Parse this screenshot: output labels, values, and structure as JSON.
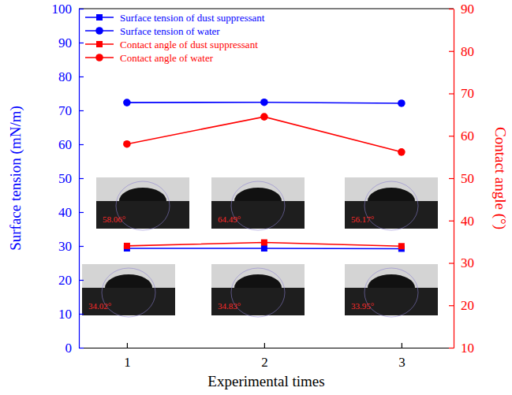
{
  "chart_data": {
    "type": "line",
    "x_label": "Experimental times",
    "y_label": "Surface tension (mN/m)",
    "y2_label": "Contact angle (°)",
    "x": [
      1,
      2,
      3
    ],
    "xlim": [
      0.65,
      3.38
    ],
    "xticks": [
      1,
      2,
      3
    ],
    "ylim": [
      0,
      100
    ],
    "yticks": [
      0,
      10,
      20,
      30,
      40,
      50,
      60,
      70,
      80,
      90,
      100
    ],
    "y2lim": [
      10,
      90
    ],
    "y2ticks": [
      10,
      20,
      30,
      40,
      50,
      60,
      70,
      80,
      90
    ],
    "legend": "upper left",
    "grid": false,
    "data_labels": true,
    "series": [
      {
        "name": "Surface tension of dust suppressant",
        "color": "#0000ff",
        "marker": "square",
        "line_style": "solid",
        "values": [
          29.3,
          29.3,
          29.2
        ]
      },
      {
        "name": "Surface tension of water",
        "color": "#0000ff",
        "marker": "circle",
        "line_style": "solid",
        "values": [
          72.3,
          72.4,
          72.1
        ]
      },
      {
        "name": "Contact angle of dust suppressant",
        "color": "#ff0000",
        "marker": "square",
        "line_style": "solid",
        "axis": "y2",
        "values": [
          34.02,
          34.83,
          33.95
        ],
        "value_labels": [
          "34.02°",
          "34.83°",
          "33.95°"
        ]
      },
      {
        "name": "Contact angle of water",
        "color": "#ff0000",
        "marker": "circle",
        "line_style": "solid",
        "axis": "y2",
        "values": [
          58.06,
          64.49,
          56.17
        ],
        "value_labels": [
          "58.06°",
          "64.49°",
          "56.17°"
        ]
      }
    ]
  }
}
